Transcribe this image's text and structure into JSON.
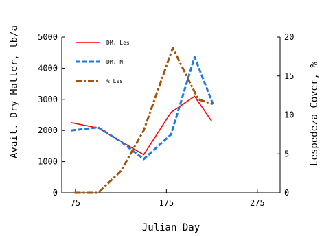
{
  "chart_data": {
    "type": "line",
    "x_axis": {
      "label": "Julian Day",
      "min": 60,
      "max": 300,
      "ticks": [
        75,
        175,
        275
      ]
    },
    "y_axis_left": {
      "label": "Avail. Dry Matter, lb/a",
      "min": 0,
      "max": 5000,
      "ticks": [
        0,
        1000,
        2000,
        3000,
        4000,
        5000
      ]
    },
    "y_axis_right": {
      "label": "Lespedeza Cover, %",
      "min": 0,
      "max": 20,
      "ticks": [
        0,
        5,
        10,
        15,
        20
      ]
    },
    "legend_position": "top-left",
    "grid": false,
    "series": [
      {
        "name": "DM, Les",
        "axis": "left",
        "color": "#ff0000",
        "style": "solid",
        "points": [
          [
            70,
            2250
          ],
          [
            100,
            2080
          ],
          [
            125,
            1650
          ],
          [
            150,
            1220
          ],
          [
            180,
            2580
          ],
          [
            206,
            3100
          ],
          [
            225,
            2290
          ]
        ]
      },
      {
        "name": "DM, N",
        "axis": "left",
        "color": "#1e78e6",
        "style": "dashed",
        "points": [
          [
            70,
            2000
          ],
          [
            100,
            2100
          ],
          [
            125,
            1640
          ],
          [
            150,
            1080
          ],
          [
            180,
            1870
          ],
          [
            206,
            4360
          ],
          [
            226,
            2860
          ]
        ]
      },
      {
        "name": "% Les",
        "axis": "right",
        "color": "#a0520f",
        "style": "dashdot",
        "points": [
          [
            74,
            0
          ],
          [
            100,
            0
          ],
          [
            125,
            2.8
          ],
          [
            150,
            8
          ],
          [
            182,
            18.6
          ],
          [
            210,
            12
          ],
          [
            226,
            11.4
          ]
        ]
      }
    ]
  }
}
